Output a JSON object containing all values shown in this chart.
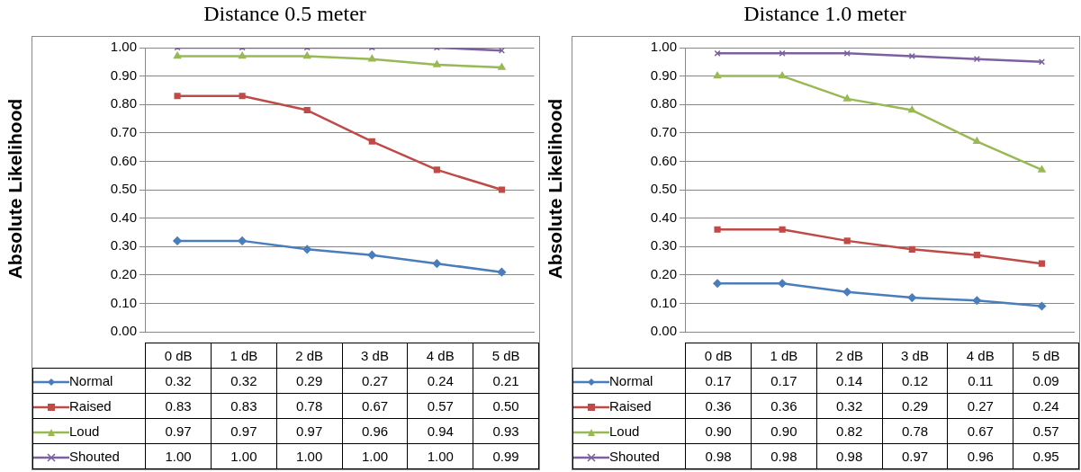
{
  "chart_data": [
    {
      "type": "line",
      "title": "Distance 0.5 meter",
      "ylabel": "Absolute Likelihood",
      "categories": [
        "0 dB",
        "1 dB",
        "2 dB",
        "3 dB",
        "4 dB",
        "5 dB"
      ],
      "ylim": [
        0,
        1
      ],
      "yticks": [
        {
          "value": 0,
          "label": "0.00"
        },
        {
          "value": 0.1,
          "label": "0.10"
        },
        {
          "value": 0.2,
          "label": "0.20"
        },
        {
          "value": 0.3,
          "label": "0.30"
        },
        {
          "value": 0.4,
          "label": "0.40"
        },
        {
          "value": 0.5,
          "label": "0.50"
        },
        {
          "value": 0.6,
          "label": "0.60"
        },
        {
          "value": 0.7,
          "label": "0.70"
        },
        {
          "value": 0.8,
          "label": "0.80"
        },
        {
          "value": 0.9,
          "label": "0.90"
        },
        {
          "value": 1,
          "label": "1.00"
        }
      ],
      "grid": "y",
      "legend": "bottom",
      "series": [
        {
          "name": "Normal",
          "color": "#4a7ebb",
          "marker": "diamond",
          "values": [
            0.32,
            0.32,
            0.29,
            0.27,
            0.24,
            0.21
          ],
          "value_labels": [
            "0.32",
            "0.32",
            "0.29",
            "0.27",
            "0.24",
            "0.21"
          ]
        },
        {
          "name": "Raised",
          "color": "#be4b48",
          "marker": "square",
          "values": [
            0.83,
            0.83,
            0.78,
            0.67,
            0.57,
            0.5
          ],
          "value_labels": [
            "0.83",
            "0.83",
            "0.78",
            "0.67",
            "0.57",
            "0.50"
          ]
        },
        {
          "name": "Loud",
          "color": "#98b954",
          "marker": "triangle",
          "values": [
            0.97,
            0.97,
            0.97,
            0.96,
            0.94,
            0.93
          ],
          "value_labels": [
            "0.97",
            "0.97",
            "0.97",
            "0.96",
            "0.94",
            "0.93"
          ]
        },
        {
          "name": "Shouted",
          "color": "#7d60a0",
          "marker": "cross",
          "values": [
            1.0,
            1.0,
            1.0,
            1.0,
            1.0,
            0.99
          ],
          "value_labels": [
            "1.00",
            "1.00",
            "1.00",
            "1.00",
            "1.00",
            "0.99"
          ]
        }
      ]
    },
    {
      "type": "line",
      "title": "Distance 1.0 meter",
      "ylabel": "Absolute Likelihood",
      "categories": [
        "0 dB",
        "1 dB",
        "2 dB",
        "3 dB",
        "4 dB",
        "5 dB"
      ],
      "ylim": [
        0,
        1
      ],
      "yticks": [
        {
          "value": 0,
          "label": "0.00"
        },
        {
          "value": 0.1,
          "label": "0.10"
        },
        {
          "value": 0.2,
          "label": "0.20"
        },
        {
          "value": 0.3,
          "label": "0.30"
        },
        {
          "value": 0.4,
          "label": "0.40"
        },
        {
          "value": 0.5,
          "label": "0.50"
        },
        {
          "value": 0.6,
          "label": "0.60"
        },
        {
          "value": 0.7,
          "label": "0.70"
        },
        {
          "value": 0.8,
          "label": "0.80"
        },
        {
          "value": 0.9,
          "label": "0.90"
        },
        {
          "value": 1,
          "label": "1.00"
        }
      ],
      "grid": "y",
      "legend": "bottom",
      "series": [
        {
          "name": "Normal",
          "color": "#4a7ebb",
          "marker": "diamond",
          "values": [
            0.17,
            0.17,
            0.14,
            0.12,
            0.11,
            0.09
          ],
          "value_labels": [
            "0.17",
            "0.17",
            "0.14",
            "0.12",
            "0.11",
            "0.09"
          ]
        },
        {
          "name": "Raised",
          "color": "#be4b48",
          "marker": "square",
          "values": [
            0.36,
            0.36,
            0.32,
            0.29,
            0.27,
            0.24
          ],
          "value_labels": [
            "0.36",
            "0.36",
            "0.32",
            "0.29",
            "0.27",
            "0.24"
          ]
        },
        {
          "name": "Loud",
          "color": "#98b954",
          "marker": "triangle",
          "values": [
            0.9,
            0.9,
            0.82,
            0.78,
            0.67,
            0.57
          ],
          "value_labels": [
            "0.90",
            "0.90",
            "0.82",
            "0.78",
            "0.67",
            "0.57"
          ]
        },
        {
          "name": "Shouted",
          "color": "#7d60a0",
          "marker": "cross",
          "values": [
            0.98,
            0.98,
            0.98,
            0.97,
            0.96,
            0.95
          ],
          "value_labels": [
            "0.98",
            "0.98",
            "0.98",
            "0.97",
            "0.96",
            "0.95"
          ]
        }
      ]
    }
  ]
}
